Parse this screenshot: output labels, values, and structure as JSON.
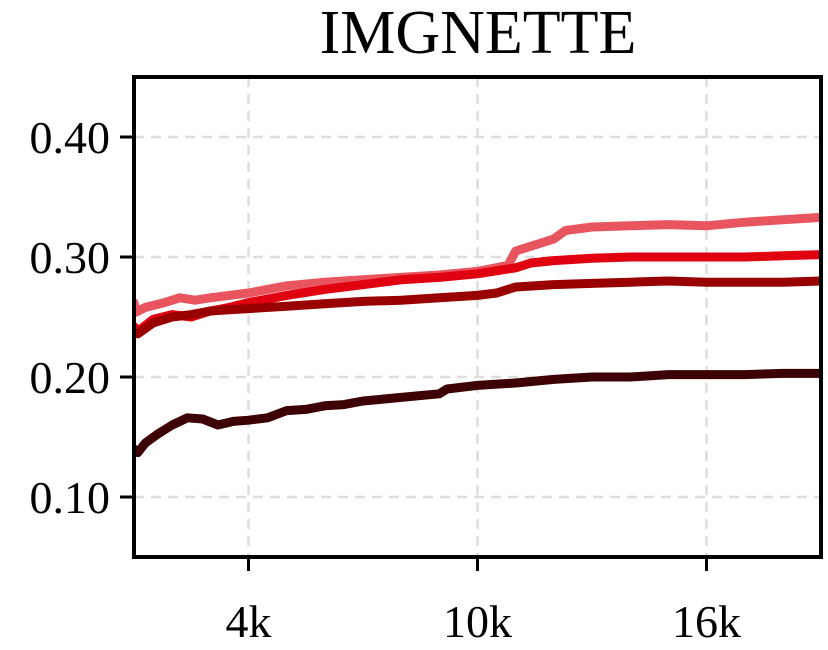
{
  "chart_data": {
    "type": "line",
    "title": "IMGNETTE",
    "xlabel": "",
    "ylabel": "",
    "xlim": [
      1000,
      19000
    ],
    "ylim": [
      0.05,
      0.45
    ],
    "x_ticks": [
      {
        "value": 4000,
        "label": "4k"
      },
      {
        "value": 10000,
        "label": "10k"
      },
      {
        "value": 16000,
        "label": "16k"
      }
    ],
    "y_ticks": [
      {
        "value": 0.1,
        "label": "0.10"
      },
      {
        "value": 0.2,
        "label": "0.20"
      },
      {
        "value": 0.3,
        "label": "0.30"
      },
      {
        "value": 0.4,
        "label": "0.40"
      }
    ],
    "grid": true,
    "series": [
      {
        "color": "#e8555f",
        "points": [
          [
            1000,
            0.262
          ],
          [
            1050,
            0.254
          ],
          [
            1300,
            0.258
          ],
          [
            1800,
            0.262
          ],
          [
            2200,
            0.266
          ],
          [
            2600,
            0.264
          ],
          [
            3000,
            0.266
          ],
          [
            4000,
            0.27
          ],
          [
            5000,
            0.276
          ],
          [
            6000,
            0.279
          ],
          [
            7000,
            0.281
          ],
          [
            8000,
            0.283
          ],
          [
            9000,
            0.285
          ],
          [
            10000,
            0.288
          ],
          [
            10800,
            0.293
          ],
          [
            11000,
            0.305
          ],
          [
            11500,
            0.31
          ],
          [
            12000,
            0.315
          ],
          [
            12300,
            0.322
          ],
          [
            13000,
            0.325
          ],
          [
            14000,
            0.326
          ],
          [
            15000,
            0.327
          ],
          [
            16000,
            0.326
          ],
          [
            17000,
            0.329
          ],
          [
            18000,
            0.331
          ],
          [
            19000,
            0.333
          ]
        ]
      },
      {
        "color": "#e0000f",
        "points": [
          [
            1000,
            0.242
          ],
          [
            1100,
            0.238
          ],
          [
            1500,
            0.248
          ],
          [
            2000,
            0.252
          ],
          [
            2500,
            0.25
          ],
          [
            3000,
            0.255
          ],
          [
            3500,
            0.258
          ],
          [
            4000,
            0.262
          ],
          [
            5000,
            0.268
          ],
          [
            6000,
            0.273
          ],
          [
            7000,
            0.277
          ],
          [
            8000,
            0.281
          ],
          [
            9000,
            0.283
          ],
          [
            10000,
            0.286
          ],
          [
            11000,
            0.291
          ],
          [
            11400,
            0.295
          ],
          [
            12000,
            0.297
          ],
          [
            13000,
            0.299
          ],
          [
            14000,
            0.3
          ],
          [
            15000,
            0.3
          ],
          [
            16000,
            0.3
          ],
          [
            17000,
            0.3
          ],
          [
            18000,
            0.301
          ],
          [
            19000,
            0.302
          ]
        ]
      },
      {
        "color": "#990000",
        "points": [
          [
            1000,
            0.237
          ],
          [
            1100,
            0.236
          ],
          [
            1500,
            0.245
          ],
          [
            2000,
            0.25
          ],
          [
            2500,
            0.252
          ],
          [
            3000,
            0.255
          ],
          [
            3500,
            0.256
          ],
          [
            4000,
            0.257
          ],
          [
            5000,
            0.259
          ],
          [
            6000,
            0.261
          ],
          [
            7000,
            0.263
          ],
          [
            8000,
            0.264
          ],
          [
            9000,
            0.266
          ],
          [
            10000,
            0.268
          ],
          [
            10500,
            0.27
          ],
          [
            11000,
            0.275
          ],
          [
            12000,
            0.277
          ],
          [
            13000,
            0.278
          ],
          [
            14000,
            0.279
          ],
          [
            15000,
            0.28
          ],
          [
            16000,
            0.279
          ],
          [
            17000,
            0.279
          ],
          [
            18000,
            0.279
          ],
          [
            19000,
            0.28
          ]
        ]
      },
      {
        "color": "#3d0004",
        "points": [
          [
            1000,
            0.14
          ],
          [
            1100,
            0.137
          ],
          [
            1300,
            0.145
          ],
          [
            1600,
            0.152
          ],
          [
            2000,
            0.16
          ],
          [
            2400,
            0.166
          ],
          [
            2800,
            0.165
          ],
          [
            3200,
            0.16
          ],
          [
            3600,
            0.163
          ],
          [
            4000,
            0.164
          ],
          [
            4500,
            0.166
          ],
          [
            5000,
            0.172
          ],
          [
            5500,
            0.173
          ],
          [
            6000,
            0.176
          ],
          [
            6500,
            0.177
          ],
          [
            7000,
            0.18
          ],
          [
            8000,
            0.183
          ],
          [
            9000,
            0.186
          ],
          [
            9200,
            0.19
          ],
          [
            10000,
            0.193
          ],
          [
            11000,
            0.195
          ],
          [
            12000,
            0.198
          ],
          [
            13000,
            0.2
          ],
          [
            14000,
            0.2
          ],
          [
            15000,
            0.202
          ],
          [
            16000,
            0.202
          ],
          [
            17000,
            0.202
          ],
          [
            18000,
            0.203
          ],
          [
            19000,
            0.203
          ]
        ]
      }
    ]
  }
}
